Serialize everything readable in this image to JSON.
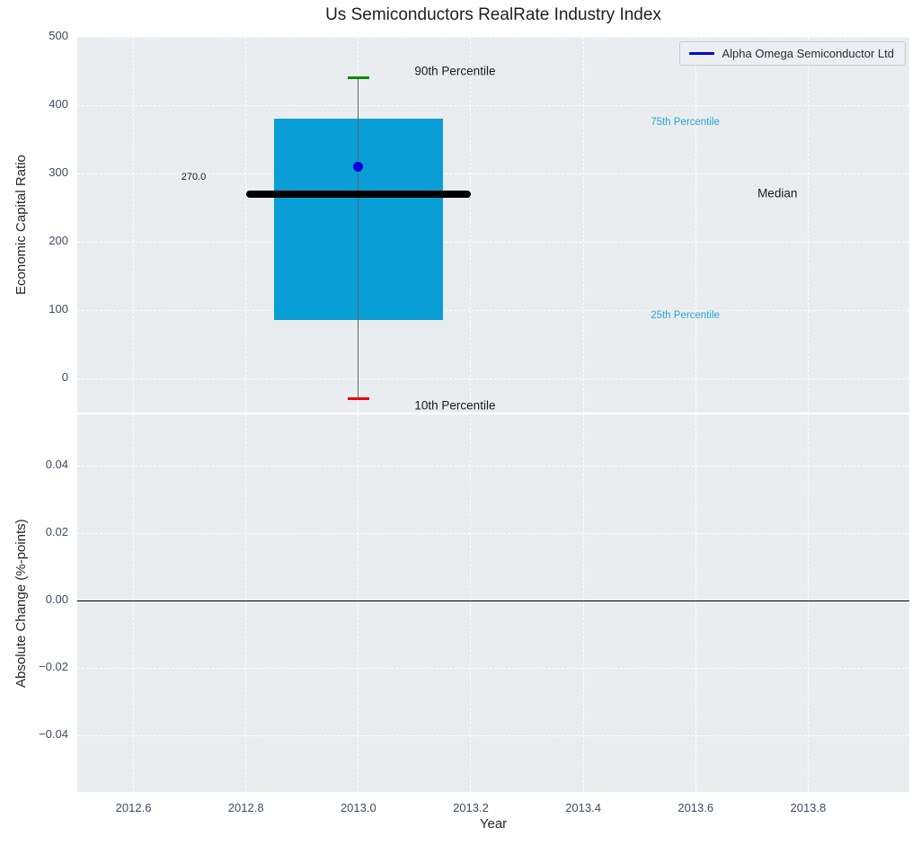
{
  "figure": {
    "title": "Us Semiconductors RealRate Industry Index",
    "legend": {
      "label": "Alpha Omega Semiconductor Ltd"
    }
  },
  "colors": {
    "plot_bg": "#eaedf0",
    "grid": "rgba(255,255,255,0.95)",
    "box_fill": "#0a9ed7",
    "p90_cap": "#0a8a0a",
    "p10_cap": "#e60505",
    "company_dot": "#0000dd",
    "median_line": "#000000",
    "whisker": "#666666",
    "zero_line": "#000000",
    "tick_label": "#3d4c63",
    "percentile_label_blue": "#29a2d9",
    "text_dark": "#1a1a1a"
  },
  "chart_data": [
    {
      "type": "box",
      "title": "Us Semiconductors RealRate Industry Index",
      "ylabel": "Economic Capital Ratio",
      "xlim": [
        2012.5,
        2013.98
      ],
      "ylim": [
        -50,
        500
      ],
      "grid": true,
      "legend_position": "upper right",
      "xticks": [
        2012.6,
        2012.8,
        2013.0,
        2013.2,
        2013.4,
        2013.6,
        2013.8
      ],
      "xtick_labels": [],
      "yticks": [
        0,
        100,
        200,
        300,
        400,
        500
      ],
      "ytick_labels": [
        "0",
        "100",
        "200",
        "300",
        "400",
        "500"
      ],
      "box": {
        "x": 2013.0,
        "left": 2012.85,
        "right": 2013.15,
        "median_x1": 2012.8,
        "median_x2": 2013.2,
        "p10": -30,
        "p25": 85,
        "median": 270,
        "p75": 380,
        "p90": 440,
        "median_label": "270.0"
      },
      "series": [
        {
          "name": "Alpha Omega Semiconductor Ltd",
          "x": [
            2013.0
          ],
          "values": [
            310
          ]
        }
      ],
      "annotations": [
        {
          "text": "90th Percentile",
          "x": 2013.1,
          "y": 450,
          "size": 13.5,
          "color": "dark"
        },
        {
          "text": "75th Percentile",
          "x": 2013.52,
          "y": 375,
          "size": 11.5,
          "color": "blue"
        },
        {
          "text": "Median",
          "x": 2013.71,
          "y": 271,
          "size": 13.5,
          "color": "dark"
        },
        {
          "text": "25th Percentile",
          "x": 2013.52,
          "y": 92,
          "size": 11.5,
          "color": "blue"
        },
        {
          "text": "10th Percentile",
          "x": 2013.1,
          "y": -40,
          "size": 13.5,
          "color": "dark"
        },
        {
          "text": "270.0",
          "x": 2012.685,
          "y": 295,
          "size": 11,
          "color": "dark"
        }
      ]
    },
    {
      "type": "line",
      "ylabel": "Absolute Change (%-points)",
      "xlabel": "Year",
      "xlim": [
        2012.5,
        2013.98
      ],
      "ylim": [
        -0.0567,
        0.0553
      ],
      "grid": true,
      "zero_line": 0.0,
      "xticks": [
        2012.6,
        2012.8,
        2013.0,
        2013.2,
        2013.4,
        2013.6,
        2013.8
      ],
      "xtick_labels": [
        "2012.6",
        "2012.8",
        "2013.0",
        "2013.2",
        "2013.4",
        "2013.6",
        "2013.8"
      ],
      "yticks": [
        0.04,
        0.02,
        0.0,
        -0.02,
        -0.04
      ],
      "ytick_labels": [
        "0.04",
        "0.02",
        "0.00",
        "−0.02",
        "−0.04"
      ],
      "series": []
    }
  ]
}
